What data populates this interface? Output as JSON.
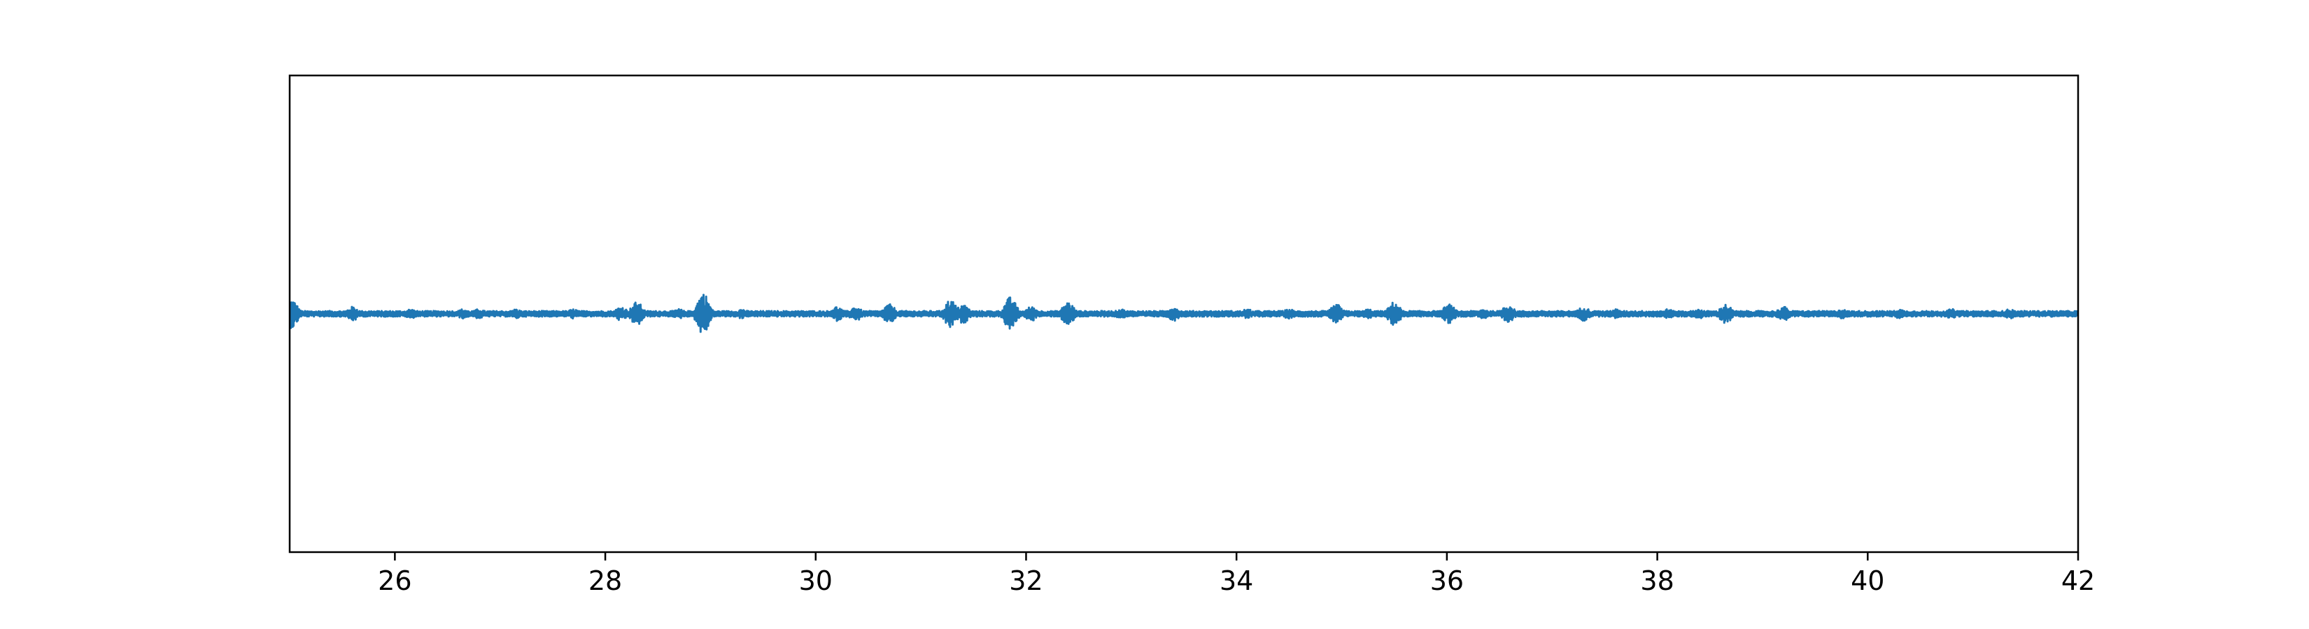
{
  "chart_data": {
    "type": "line",
    "title": "",
    "xlabel": "",
    "ylabel": "",
    "xlim": [
      25,
      42
    ],
    "ylim": [
      -1,
      1
    ],
    "x_ticks": [
      26,
      28,
      30,
      32,
      34,
      36,
      38,
      40,
      42
    ],
    "x_tick_labels": [
      "26",
      "28",
      "30",
      "32",
      "34",
      "36",
      "38",
      "40",
      "42"
    ],
    "y_ticks_shown": false,
    "grid": false,
    "legend": "none",
    "colors": {
      "series": "#1f77b4",
      "axes": "#000000",
      "background": "#ffffff"
    },
    "series": [
      {
        "baseline": 0.0,
        "noise_amplitude": 0.012,
        "bursts": [
          {
            "x": 25.02,
            "amplitude": 0.06
          },
          {
            "x": 25.6,
            "amplitude": 0.03
          },
          {
            "x": 26.15,
            "amplitude": 0.02
          },
          {
            "x": 26.65,
            "amplitude": 0.02
          },
          {
            "x": 26.8,
            "amplitude": 0.02
          },
          {
            "x": 27.15,
            "amplitude": 0.02
          },
          {
            "x": 27.7,
            "amplitude": 0.02
          },
          {
            "x": 28.15,
            "amplitude": 0.03
          },
          {
            "x": 28.3,
            "amplitude": 0.05
          },
          {
            "x": 28.7,
            "amplitude": 0.02
          },
          {
            "x": 28.93,
            "amplitude": 0.09
          },
          {
            "x": 29.3,
            "amplitude": 0.02
          },
          {
            "x": 30.2,
            "amplitude": 0.03
          },
          {
            "x": 30.38,
            "amplitude": 0.03
          },
          {
            "x": 30.7,
            "amplitude": 0.04
          },
          {
            "x": 31.28,
            "amplitude": 0.06
          },
          {
            "x": 31.4,
            "amplitude": 0.04
          },
          {
            "x": 31.85,
            "amplitude": 0.07
          },
          {
            "x": 32.05,
            "amplitude": 0.03
          },
          {
            "x": 32.4,
            "amplitude": 0.05
          },
          {
            "x": 32.9,
            "amplitude": 0.02
          },
          {
            "x": 33.4,
            "amplitude": 0.03
          },
          {
            "x": 34.1,
            "amplitude": 0.02
          },
          {
            "x": 34.5,
            "amplitude": 0.02
          },
          {
            "x": 34.95,
            "amplitude": 0.04
          },
          {
            "x": 35.25,
            "amplitude": 0.02
          },
          {
            "x": 35.5,
            "amplitude": 0.05
          },
          {
            "x": 36.02,
            "amplitude": 0.04
          },
          {
            "x": 36.35,
            "amplitude": 0.02
          },
          {
            "x": 36.58,
            "amplitude": 0.04
          },
          {
            "x": 37.3,
            "amplitude": 0.03
          },
          {
            "x": 37.6,
            "amplitude": 0.02
          },
          {
            "x": 38.1,
            "amplitude": 0.02
          },
          {
            "x": 38.4,
            "amplitude": 0.02
          },
          {
            "x": 38.65,
            "amplitude": 0.04
          },
          {
            "x": 39.2,
            "amplitude": 0.03
          },
          {
            "x": 39.75,
            "amplitude": 0.02
          },
          {
            "x": 40.3,
            "amplitude": 0.02
          },
          {
            "x": 40.8,
            "amplitude": 0.02
          },
          {
            "x": 41.35,
            "amplitude": 0.02
          }
        ]
      }
    ]
  }
}
